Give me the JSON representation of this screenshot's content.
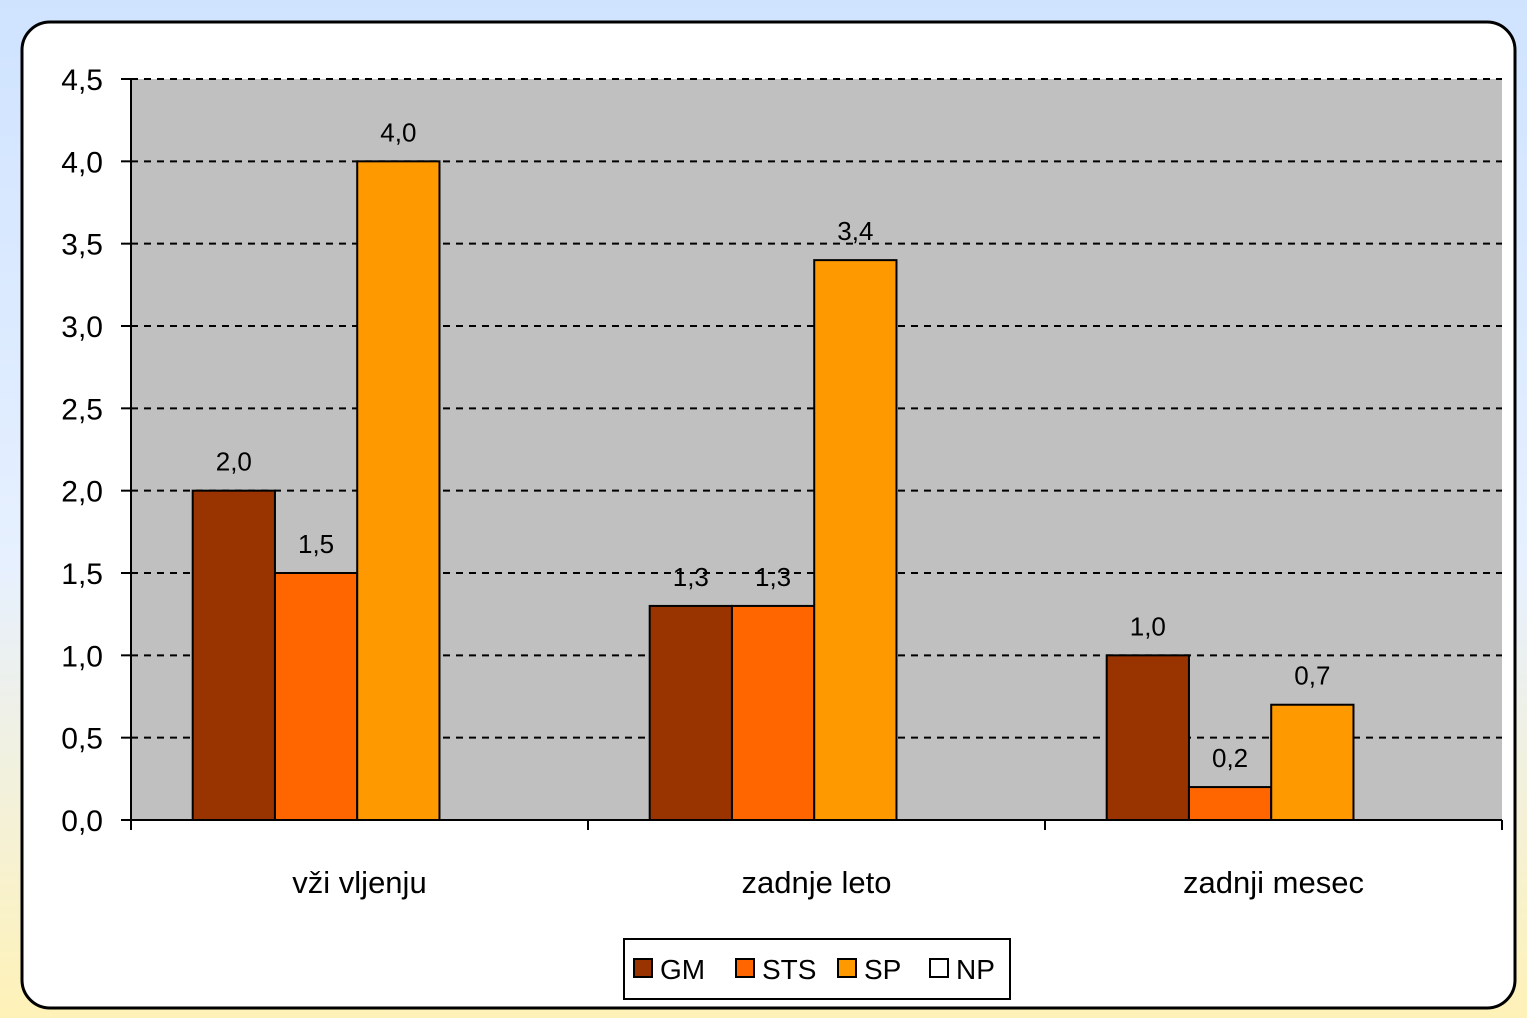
{
  "chart_data": {
    "type": "bar",
    "categories": [
      "vži vljenju",
      "zadnje leto",
      "zadnji mesec"
    ],
    "series": [
      {
        "name": "GM",
        "color": "#993300",
        "values": [
          2.0,
          1.3,
          1.0
        ],
        "labels": [
          "2,0",
          "1,3",
          "1,0"
        ]
      },
      {
        "name": "STS",
        "color": "#ff6600",
        "values": [
          1.5,
          1.3,
          0.2
        ],
        "labels": [
          "1,5",
          "1,3",
          "0,2"
        ]
      },
      {
        "name": "SP",
        "color": "#ff9900",
        "values": [
          4.0,
          3.4,
          0.7
        ],
        "labels": [
          "4,0",
          "3,4",
          "0,7"
        ]
      },
      {
        "name": "NP",
        "color": "#ffffff",
        "values": [
          0,
          0,
          0
        ],
        "labels": [
          "",
          "",
          ""
        ]
      }
    ],
    "ylim": [
      0,
      4.5
    ],
    "yticks": [
      {
        "value": 0.0,
        "label": "0,0"
      },
      {
        "value": 0.5,
        "label": "0,5"
      },
      {
        "value": 1.0,
        "label": "1,0"
      },
      {
        "value": 1.5,
        "label": "1,5"
      },
      {
        "value": 2.0,
        "label": "2,0"
      },
      {
        "value": 2.5,
        "label": "2,5"
      },
      {
        "value": 3.0,
        "label": "3,0"
      },
      {
        "value": 3.5,
        "label": "3,5"
      },
      {
        "value": 4.0,
        "label": "4,0"
      },
      {
        "value": 4.5,
        "label": "4,5"
      }
    ],
    "grid": "dashed horizontal",
    "plot_background": "#c0c0c0",
    "legend": "bottom-center"
  }
}
